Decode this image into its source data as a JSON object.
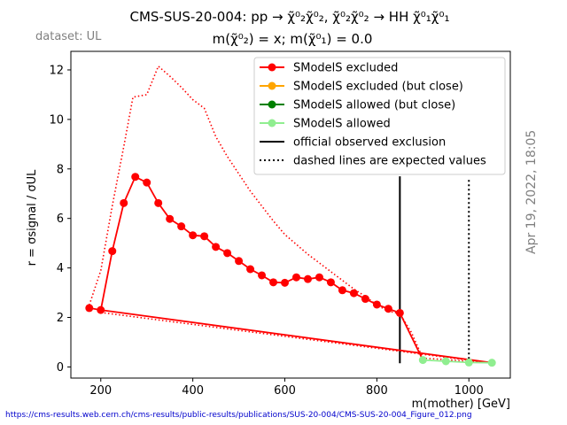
{
  "figure": {
    "title_line1": "CMS-SUS-20-004: pp → χ̃⁰₂χ̃⁰₂, χ̃⁰₂χ̃⁰₂ → HH χ̃⁰₁χ̃⁰₁",
    "title_line2": "m(χ̃⁰₂) = x; m(χ̃⁰₁) = 0.0",
    "dataset_label": "dataset: UL",
    "timestamp": "Apr 19, 2022, 18:05",
    "source_url": "https://cms-results.web.cern.ch/cms-results/public-results/publications/SUS-20-004/CMS-SUS-20-004_Figure_012.png"
  },
  "chart_data": {
    "type": "line",
    "xlabel": "m(mother) [GeV]",
    "ylabel": "r = σsignal / σUL",
    "xlim": [
      135,
      1090
    ],
    "ylim": [
      -0.45,
      12.75
    ],
    "xticks": [
      200,
      400,
      600,
      800,
      1000
    ],
    "yticks": [
      0,
      2,
      4,
      6,
      8,
      10,
      12
    ],
    "grid": false,
    "legend_position": "top-right",
    "legend": [
      {
        "label": "SModelS excluded",
        "color": "#ff0000",
        "style": "marker-line"
      },
      {
        "label": "SModelS excluded (but close)",
        "color": "#ffa500",
        "style": "marker-line"
      },
      {
        "label": "SModelS allowed (but close)",
        "color": "#008000",
        "style": "marker-line"
      },
      {
        "label": "SModelS allowed",
        "color": "#90ee90",
        "style": "marker-line"
      },
      {
        "label": "official observed exclusion",
        "color": "#000000",
        "style": "solid"
      },
      {
        "label": "dashed lines are expected values",
        "color": "#000000",
        "style": "dotted"
      }
    ],
    "series": [
      {
        "status": "excluded",
        "color": "#ff0000",
        "line": "solid",
        "points": [
          [
            175,
            2.38
          ],
          [
            200,
            2.3
          ],
          [
            225,
            4.68
          ],
          [
            250,
            6.62
          ],
          [
            275,
            7.68
          ],
          [
            300,
            7.45
          ],
          [
            325,
            6.62
          ],
          [
            350,
            5.98
          ],
          [
            375,
            5.68
          ],
          [
            400,
            5.32
          ],
          [
            425,
            5.28
          ],
          [
            450,
            4.85
          ],
          [
            475,
            4.6
          ],
          [
            500,
            4.28
          ],
          [
            525,
            3.95
          ],
          [
            550,
            3.7
          ],
          [
            575,
            3.42
          ],
          [
            600,
            3.4
          ],
          [
            625,
            3.62
          ],
          [
            650,
            3.55
          ],
          [
            675,
            3.62
          ],
          [
            700,
            3.42
          ],
          [
            725,
            3.1
          ],
          [
            750,
            2.98
          ],
          [
            775,
            2.75
          ],
          [
            800,
            2.52
          ],
          [
            825,
            2.35
          ],
          [
            850,
            2.18
          ]
        ]
      },
      {
        "status": "allowed",
        "color": "#90ee90",
        "line": "solid",
        "points": [
          [
            900,
            0.28
          ],
          [
            950,
            0.23
          ],
          [
            1000,
            0.18
          ],
          [
            1050,
            0.17
          ]
        ]
      }
    ],
    "connector_lines": [
      {
        "color": "#ff0000",
        "line": "solid",
        "points": [
          [
            850,
            2.18
          ],
          [
            900,
            0.28
          ]
        ]
      },
      {
        "color": "#ff0000",
        "line": "solid",
        "points": [
          [
            200,
            2.3
          ],
          [
            1050,
            0.17
          ]
        ]
      }
    ],
    "expected_curve": {
      "color": "#ff0000",
      "line": "dotted",
      "points": [
        [
          175,
          2.5
        ],
        [
          200,
          3.9
        ],
        [
          225,
          6.5
        ],
        [
          250,
          8.9
        ],
        [
          270,
          10.9
        ],
        [
          300,
          11.0
        ],
        [
          325,
          12.15
        ],
        [
          350,
          11.75
        ],
        [
          375,
          11.3
        ],
        [
          400,
          10.8
        ],
        [
          425,
          10.45
        ],
        [
          450,
          9.3
        ],
        [
          475,
          8.5
        ],
        [
          500,
          7.8
        ],
        [
          525,
          7.1
        ],
        [
          550,
          6.5
        ],
        [
          575,
          5.9
        ],
        [
          600,
          5.35
        ],
        [
          625,
          4.95
        ],
        [
          650,
          4.55
        ],
        [
          675,
          4.2
        ],
        [
          700,
          3.85
        ],
        [
          725,
          3.5
        ],
        [
          750,
          3.15
        ],
        [
          775,
          2.85
        ],
        [
          800,
          2.5
        ],
        [
          825,
          2.25
        ],
        [
          850,
          2.15
        ],
        [
          875,
          1.4
        ],
        [
          900,
          0.35
        ],
        [
          950,
          0.3
        ],
        [
          1000,
          0.22
        ],
        [
          1050,
          0.17
        ]
      ]
    },
    "expected_lower": {
      "color": "#ff0000",
      "line": "dotted",
      "points": [
        [
          200,
          2.2
        ],
        [
          1050,
          0.15
        ]
      ]
    },
    "observed_exclusion": {
      "x": 850,
      "y_range": [
        0.15,
        7.7
      ],
      "line": "solid",
      "color": "#000000"
    },
    "expected_exclusion": {
      "x": 1000,
      "y_range": [
        0.15,
        7.6
      ],
      "line": "dotted",
      "color": "#000000"
    }
  }
}
